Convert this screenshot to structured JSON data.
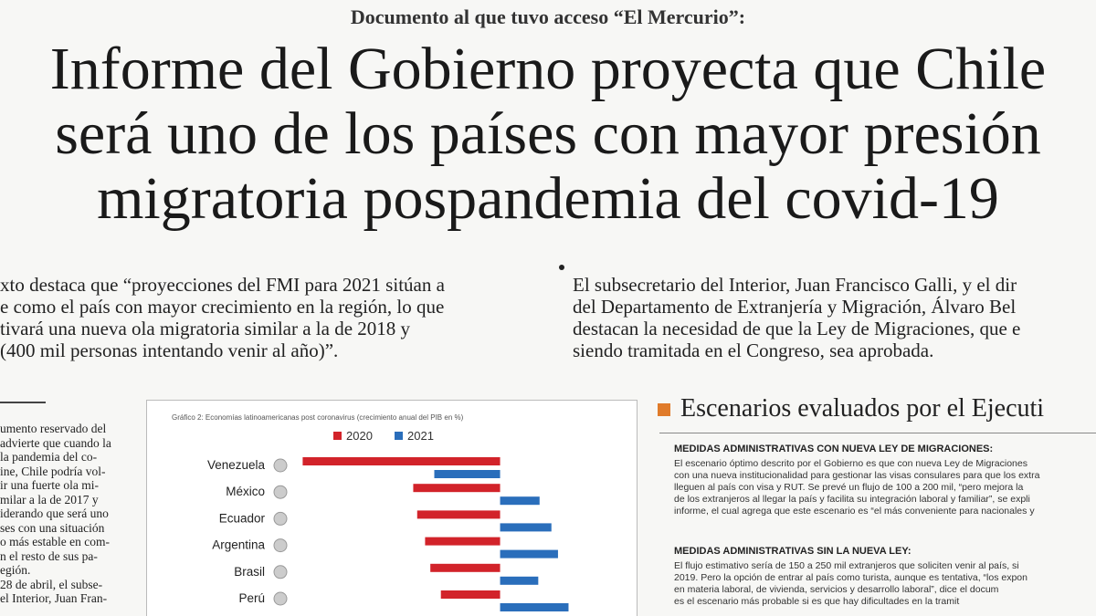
{
  "kicker": "Documento al que tuvo acceso “El Mercurio”:",
  "headline": [
    "Informe del Gobierno proyecta que Chile",
    "será uno de los países con mayor presión",
    "migratoria pospandemia del covid-19"
  ],
  "lead_left": [
    "xto destaca que “proyecciones del FMI para 2021 sitúan a",
    "e como el país con mayor crecimiento en la región, lo que",
    "tivará una nueva ola migratoria similar a la de 2018 y",
    "(400 mil personas intentando venir al año)”."
  ],
  "lead_right": [
    "El subsecretario del Interior, Juan Francisco Galli, y el dir",
    "del Departamento de Extranjería y Migración, Álvaro Bel",
    "destacan la necesidad de que la Ley de Migraciones, que e",
    "siendo tramitada en el Congreso, sea aprobada."
  ],
  "body_left": [
    "umento reservado del",
    "advierte que cuando la",
    "la pandemia del co-",
    "ine, Chile podría vol-",
    "ir una fuerte ola mi-",
    "milar a la de 2017 y",
    "iderando que será uno",
    "ses con una situación",
    "o más estable en com-",
    "n el resto de sus pa-",
    "egión.",
    "28 de abril, el subse-",
    "el Interior, Juan Fran-"
  ],
  "sidebar": {
    "title": "Escenarios evaluados por el Ejecuti",
    "heading_1": "MEDIDAS ADMINISTRATIVAS CON NUEVA LEY DE MIGRACIONES:",
    "text_1": [
      "El escenario óptimo descrito por el Gobierno es que con nueva Ley de Migraciones",
      "con una nueva institucionalidad para gestionar las visas consulares para que los extra",
      "lleguen al país con visa y RUT. Se prevé un flujo de 100 a 200 mil, “pero mejora la",
      "de los extranjeros al llegar la país y facilita su integración laboral y familiar”, se expli",
      "informe, el cual agrega que este escenario es “el más conveniente para nacionales y"
    ],
    "heading_2": "MEDIDAS ADMINISTRATIVAS SIN LA NUEVA LEY:",
    "text_2": [
      "El flujo estimativo sería de 150 a 250 mil extranjeros que soliciten venir al país, si",
      "2019. Pero la opción de entrar al país como turista, aunque es tentativa, “los expon",
      "en materia laboral, de vivienda, servicios y desarrollo laboral”, dice el docum",
      "es el escenario más probable si es que hay dificultades en la tramit"
    ]
  },
  "chart_data": {
    "type": "bar",
    "orientation": "horizontal",
    "title": "Gráfico 2: Economías latinoamericanas post coronavirus (crecimiento anual del PIB en %)",
    "categories": [
      "Venezuela",
      "México",
      "Ecuador",
      "Argentina",
      "Brasil",
      "Perú"
    ],
    "series": [
      {
        "name": "2020",
        "color": "#d2232a",
        "values": [
          -15,
          -6.6,
          -6.3,
          -5.7,
          -5.3,
          -4.5
        ]
      },
      {
        "name": "2021",
        "color": "#2a6ebb",
        "values": [
          -5,
          3,
          3.9,
          4.4,
          2.9,
          5.2
        ]
      }
    ],
    "xlim": [
      -16,
      6
    ]
  }
}
